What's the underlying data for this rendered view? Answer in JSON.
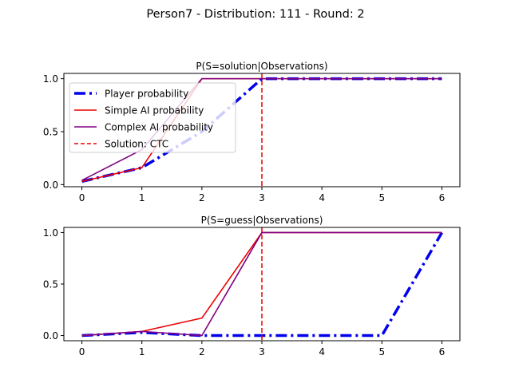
{
  "figure": {
    "suptitle": "Person7 -  Distribution: 111 - Round: 2"
  },
  "colors": {
    "player": "#0000ee",
    "simple_ai": "#ee0000",
    "complex_ai": "#800080",
    "solution": "#ee0000"
  },
  "chart_data": [
    {
      "type": "line",
      "title": "P(S=solution|Observations)",
      "xlabel": "",
      "ylabel": "",
      "xlim": [
        -0.3,
        6.3
      ],
      "ylim": [
        -0.02,
        1.05
      ],
      "xticks": [
        "0",
        "1",
        "2",
        "3",
        "4",
        "5",
        "6"
      ],
      "yticks": [
        "0.0",
        "0.5",
        "1.0"
      ],
      "x": [
        0,
        1,
        2,
        3,
        4,
        5,
        6
      ],
      "series": [
        {
          "name": "Player probability",
          "style": "thick-dashdot",
          "values": [
            0.03,
            0.16,
            0.5,
            1.0,
            1.0,
            1.0,
            1.0
          ]
        },
        {
          "name": "Simple AI probability",
          "style": "solid",
          "values": [
            0.03,
            0.16,
            1.0,
            1.0,
            1.0,
            1.0,
            1.0
          ]
        },
        {
          "name": "Complex AI probability",
          "style": "solid",
          "values": [
            0.04,
            0.33,
            1.0,
            1.0,
            1.0,
            1.0,
            1.0
          ]
        }
      ],
      "vline": {
        "name": "Solution: CTC",
        "x": 3,
        "style": "dashed"
      },
      "legend": "upper-left",
      "grid": false
    },
    {
      "type": "line",
      "title": "P(S=guess|Observations)",
      "xlabel": "",
      "ylabel": "",
      "xlim": [
        -0.3,
        6.3
      ],
      "ylim": [
        -0.05,
        1.05
      ],
      "xticks": [
        "0",
        "1",
        "2",
        "3",
        "4",
        "5",
        "6"
      ],
      "yticks": [
        "0.0",
        "0.5",
        "1.0"
      ],
      "x": [
        0,
        1,
        2,
        3,
        4,
        5,
        6
      ],
      "series": [
        {
          "name": "Player probability",
          "style": "thick-dashdot",
          "values": [
            0.0,
            0.03,
            0.0,
            0.0,
            0.0,
            0.0,
            1.0
          ]
        },
        {
          "name": "Simple AI probability",
          "style": "solid",
          "values": [
            0.0,
            0.04,
            0.17,
            1.0,
            1.0,
            1.0,
            1.0
          ]
        },
        {
          "name": "Complex AI probability",
          "style": "solid",
          "values": [
            0.0,
            0.04,
            0.0,
            1.0,
            1.0,
            1.0,
            1.0
          ]
        }
      ],
      "vline": {
        "name": "Solution: CTC",
        "x": 3,
        "style": "dashed"
      },
      "legend": "none",
      "grid": false
    }
  ]
}
